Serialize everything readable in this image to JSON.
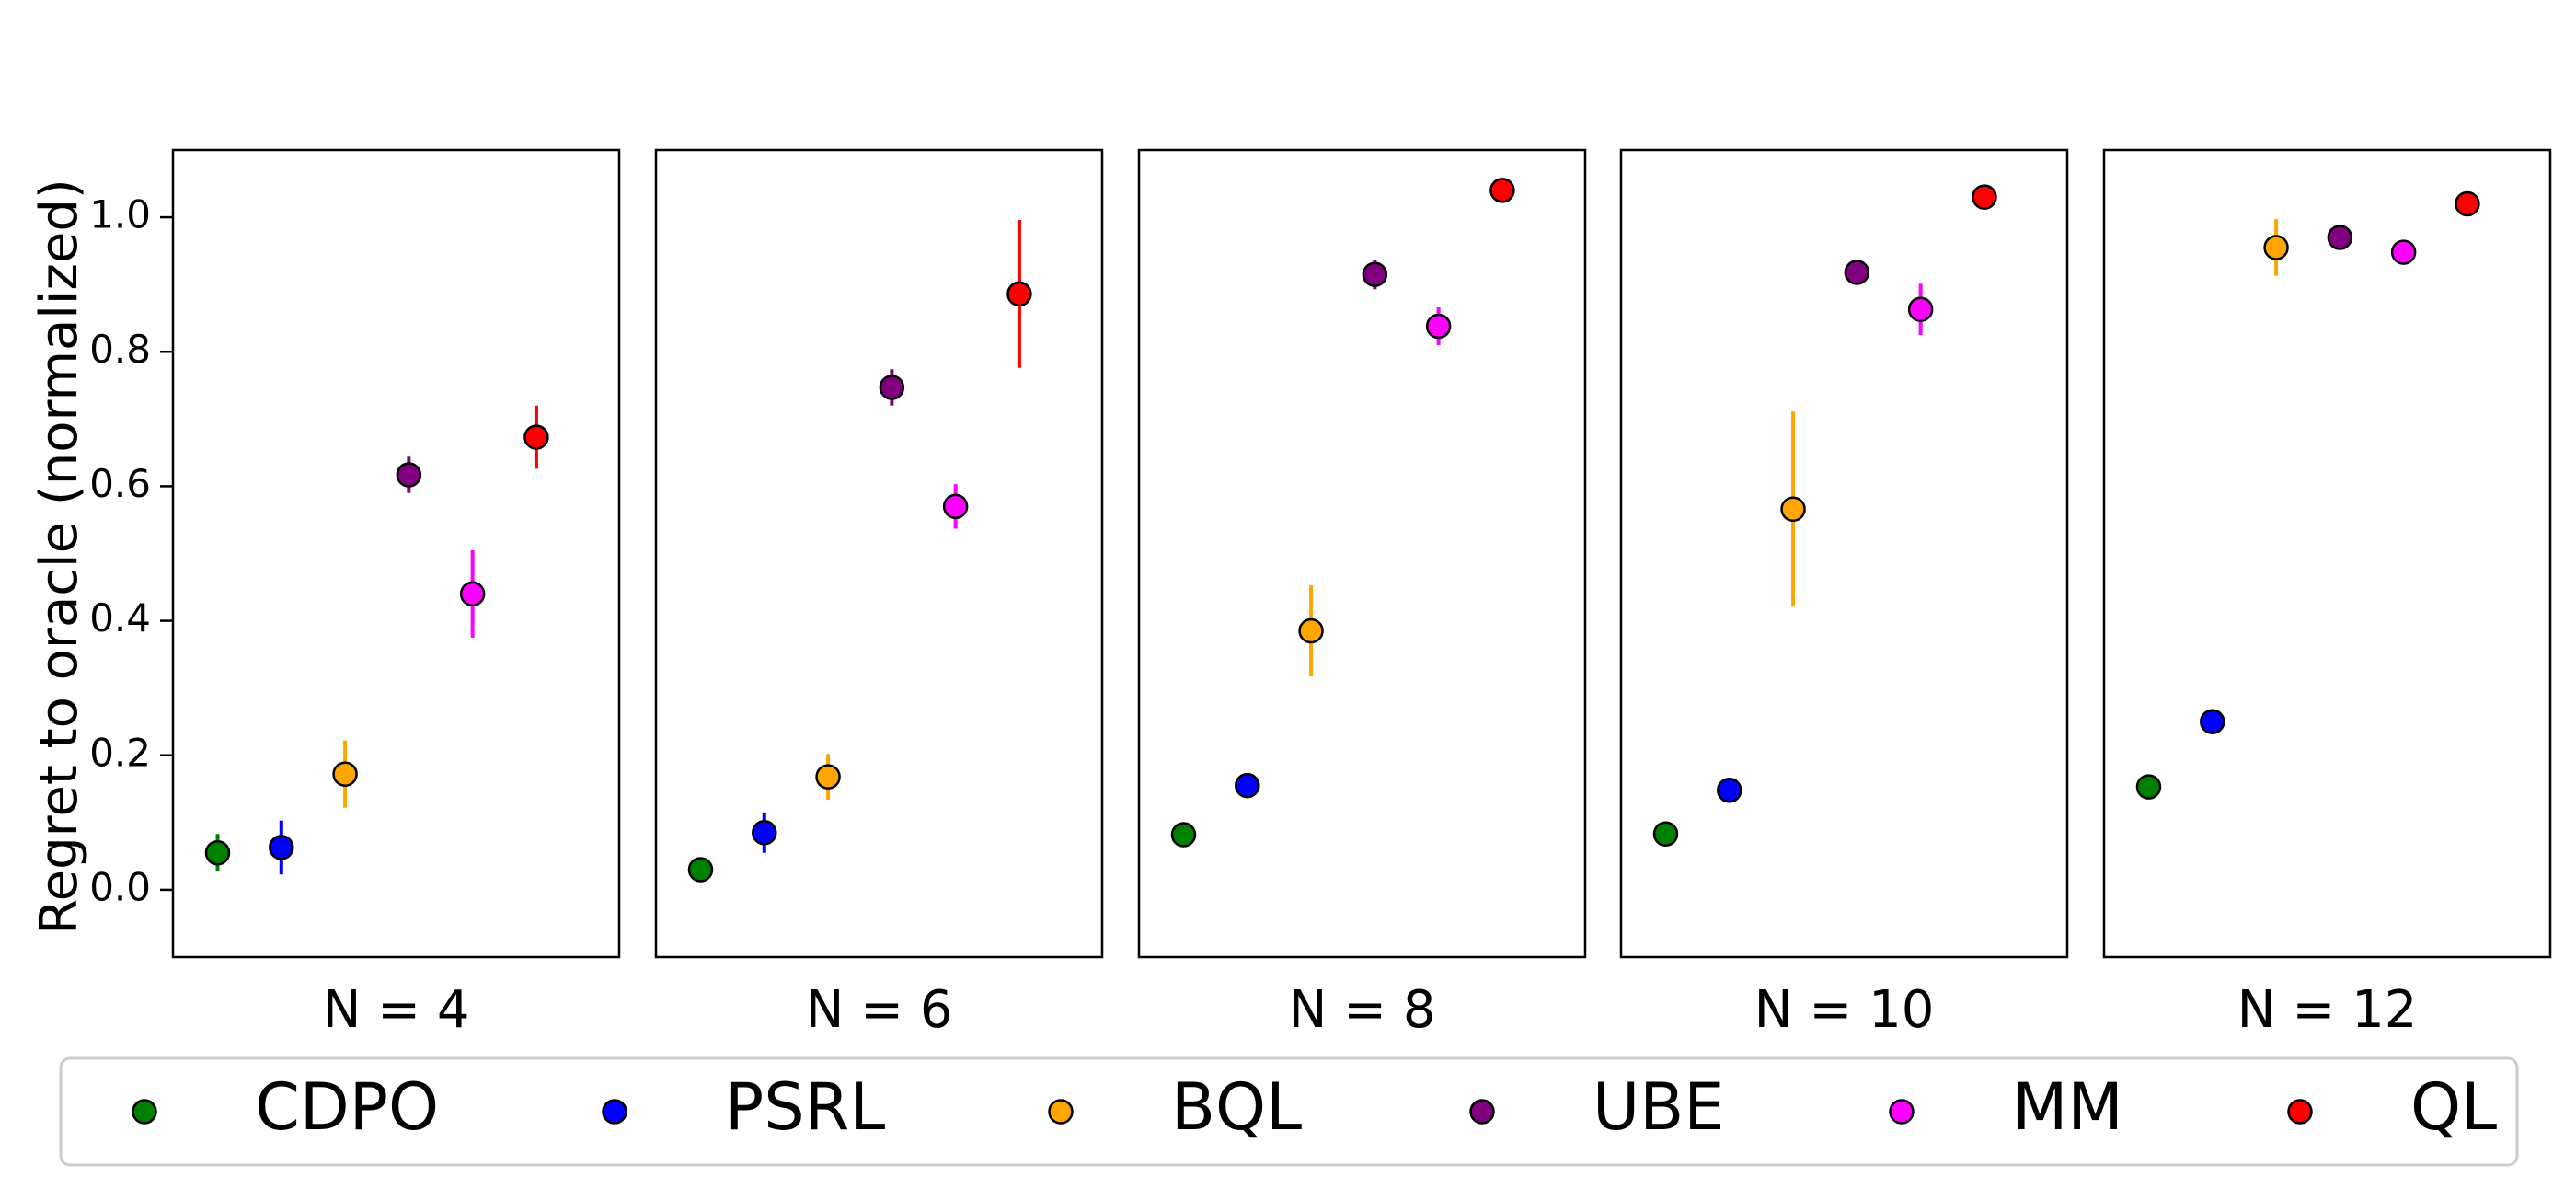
{
  "chart_data": {
    "type": "scatter",
    "ylabel": "Regret to oracle (normalized)",
    "ylim": [
      -0.1,
      1.1
    ],
    "yticks": [
      0.0,
      0.2,
      0.4,
      0.6,
      0.8,
      1.0
    ],
    "ytick_labels": [
      "0.0",
      "0.2",
      "0.4",
      "0.6",
      "0.8",
      "1.0"
    ],
    "error_bars": true,
    "grid": false,
    "legend": {
      "placement": "bottom",
      "ncol": 6
    },
    "methods": [
      {
        "name": "CDPO",
        "color": "#008000"
      },
      {
        "name": "PSRL",
        "color": "#0000ff"
      },
      {
        "name": "BQL",
        "color": "#ffa500"
      },
      {
        "name": "UBE",
        "color": "#800080"
      },
      {
        "name": "MM",
        "color": "#ff00ff"
      },
      {
        "name": "QL",
        "color": "#ff0000"
      }
    ],
    "panels": [
      {
        "label": "N = 4",
        "values": [
          0.055,
          0.063,
          0.172,
          0.617,
          0.44,
          0.673
        ],
        "errors": [
          0.028,
          0.04,
          0.05,
          0.027,
          0.065,
          0.047
        ]
      },
      {
        "label": "N = 6",
        "values": [
          0.03,
          0.085,
          0.168,
          0.747,
          0.57,
          0.886
        ],
        "errors": [
          0.01,
          0.03,
          0.034,
          0.027,
          0.033,
          0.11
        ]
      },
      {
        "label": "N = 8",
        "values": [
          0.082,
          0.155,
          0.385,
          0.915,
          0.838,
          1.04
        ],
        "errors": [
          0.01,
          0.01,
          0.068,
          0.022,
          0.028,
          0.0
        ]
      },
      {
        "label": "N = 10",
        "values": [
          0.083,
          0.148,
          0.566,
          0.918,
          0.863,
          1.03
        ],
        "errors": [
          0.0,
          0.0,
          0.145,
          0.0,
          0.038,
          0.0
        ]
      },
      {
        "label": "N = 12",
        "values": [
          0.153,
          0.25,
          0.955,
          0.97,
          0.948,
          1.02
        ],
        "errors": [
          0.0,
          0.0,
          0.042,
          0.0,
          0.0,
          0.0
        ]
      }
    ]
  }
}
